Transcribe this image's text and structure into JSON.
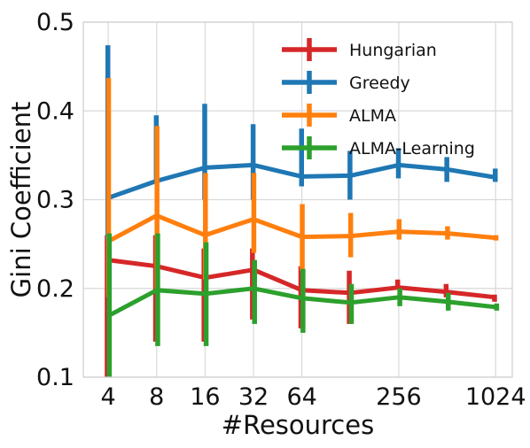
{
  "chart_data": {
    "type": "line",
    "xlabel": "#Resources",
    "ylabel": "Gini Coefficient",
    "x": [
      4,
      8,
      16,
      32,
      64,
      128,
      256,
      512,
      1024
    ],
    "x_scale": "log2",
    "xlim": [
      2.8,
      1300
    ],
    "xticks": [
      4,
      8,
      16,
      32,
      64,
      256,
      1024
    ],
    "xtick_labels": [
      "4",
      "8",
      "16",
      "32",
      "64",
      "256",
      "1024"
    ],
    "ylim": [
      0.1,
      0.5
    ],
    "yticks": [
      0.1,
      0.2,
      0.3,
      0.4,
      0.5
    ],
    "ytick_labels": [
      "0.1",
      "0.2",
      "0.3",
      "0.4",
      "0.5"
    ],
    "grid": true,
    "legend_position": "top-right",
    "series": [
      {
        "name": "Hungarian",
        "color": "#d62728",
        "values": [
          0.232,
          0.225,
          0.212,
          0.221,
          0.198,
          0.195,
          0.201,
          0.196,
          0.19
        ],
        "err_low": [
          0.1,
          0.14,
          0.14,
          0.165,
          0.155,
          0.16,
          0.2,
          0.19,
          0.185
        ],
        "err_high": [
          0.26,
          0.26,
          0.245,
          0.245,
          0.225,
          0.22,
          0.21,
          0.205,
          0.193
        ]
      },
      {
        "name": "Greedy",
        "color": "#1f77b4",
        "values": [
          0.302,
          0.321,
          0.336,
          0.339,
          0.326,
          0.327,
          0.339,
          0.334,
          0.325
        ],
        "err_low": [
          0.255,
          0.32,
          0.3,
          0.3,
          0.315,
          0.3,
          0.324,
          0.32,
          0.32
        ],
        "err_high": [
          0.474,
          0.395,
          0.408,
          0.385,
          0.38,
          0.355,
          0.358,
          0.348,
          0.335
        ]
      },
      {
        "name": "ALMA",
        "color": "#ff7f0e",
        "values": [
          0.253,
          0.282,
          0.26,
          0.278,
          0.258,
          0.259,
          0.264,
          0.262,
          0.257
        ],
        "err_low": [
          0.19,
          0.2,
          0.21,
          0.24,
          0.22,
          0.235,
          0.255,
          0.255,
          0.254
        ],
        "err_high": [
          0.437,
          0.383,
          0.33,
          0.33,
          0.295,
          0.285,
          0.278,
          0.27,
          0.26
        ]
      },
      {
        "name": "ALMA-Learning",
        "color": "#2ca02c",
        "values": [
          0.169,
          0.198,
          0.194,
          0.2,
          0.189,
          0.184,
          0.19,
          0.185,
          0.179
        ],
        "err_low": [
          0.1,
          0.135,
          0.135,
          0.16,
          0.15,
          0.16,
          0.18,
          0.175,
          0.175
        ],
        "err_high": [
          0.262,
          0.262,
          0.252,
          0.232,
          0.222,
          0.205,
          0.2,
          0.195,
          0.183
        ]
      }
    ]
  }
}
